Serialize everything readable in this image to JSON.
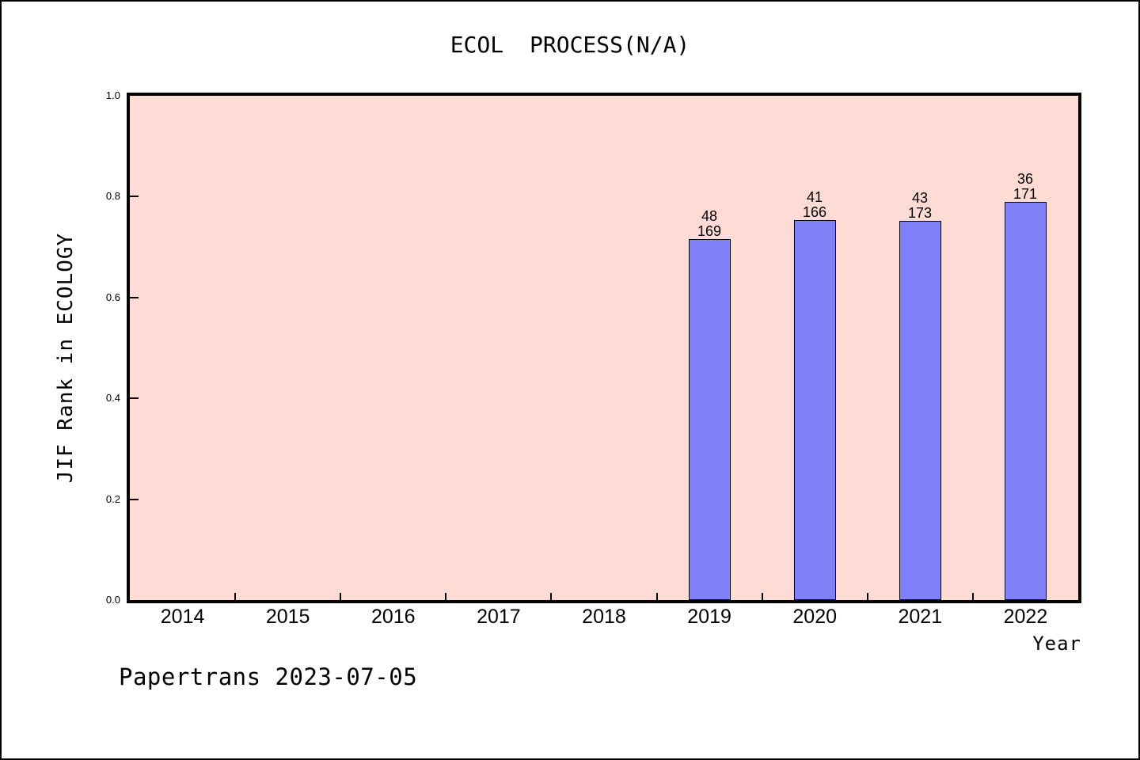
{
  "chart_data": {
    "type": "bar",
    "title": "ECOL PROCESS(N/A)",
    "xlabel": "Year",
    "ylabel": "JIF Rank in ECOLOGY",
    "categories": [
      "2014",
      "2015",
      "2016",
      "2017",
      "2018",
      "2019",
      "2020",
      "2021",
      "2022"
    ],
    "values": [
      null,
      null,
      null,
      null,
      null,
      0.716,
      0.753,
      0.7514,
      0.7895
    ],
    "bars": [
      {
        "category": "2019",
        "rank": 48,
        "total": 169,
        "value": 0.716
      },
      {
        "category": "2020",
        "rank": 41,
        "total": 166,
        "value": 0.753
      },
      {
        "category": "2021",
        "rank": 43,
        "total": 173,
        "value": 0.7514
      },
      {
        "category": "2022",
        "rank": 36,
        "total": 171,
        "value": 0.7895
      }
    ],
    "ylim": [
      0.0,
      1.0
    ],
    "yticks": [
      "0.0",
      "0.2",
      "0.4",
      "0.6",
      "0.8",
      "1.0"
    ],
    "grid": false,
    "legend": null,
    "colors": {
      "plot_background": "#FFDBD6",
      "bar_fill": "#8080F8",
      "bar_border": "#000000",
      "axis": "#000000",
      "text": "#000000",
      "page_background": "#FFFFFF"
    }
  },
  "footer": {
    "watermark": "Papertrans 2023-07-05"
  }
}
